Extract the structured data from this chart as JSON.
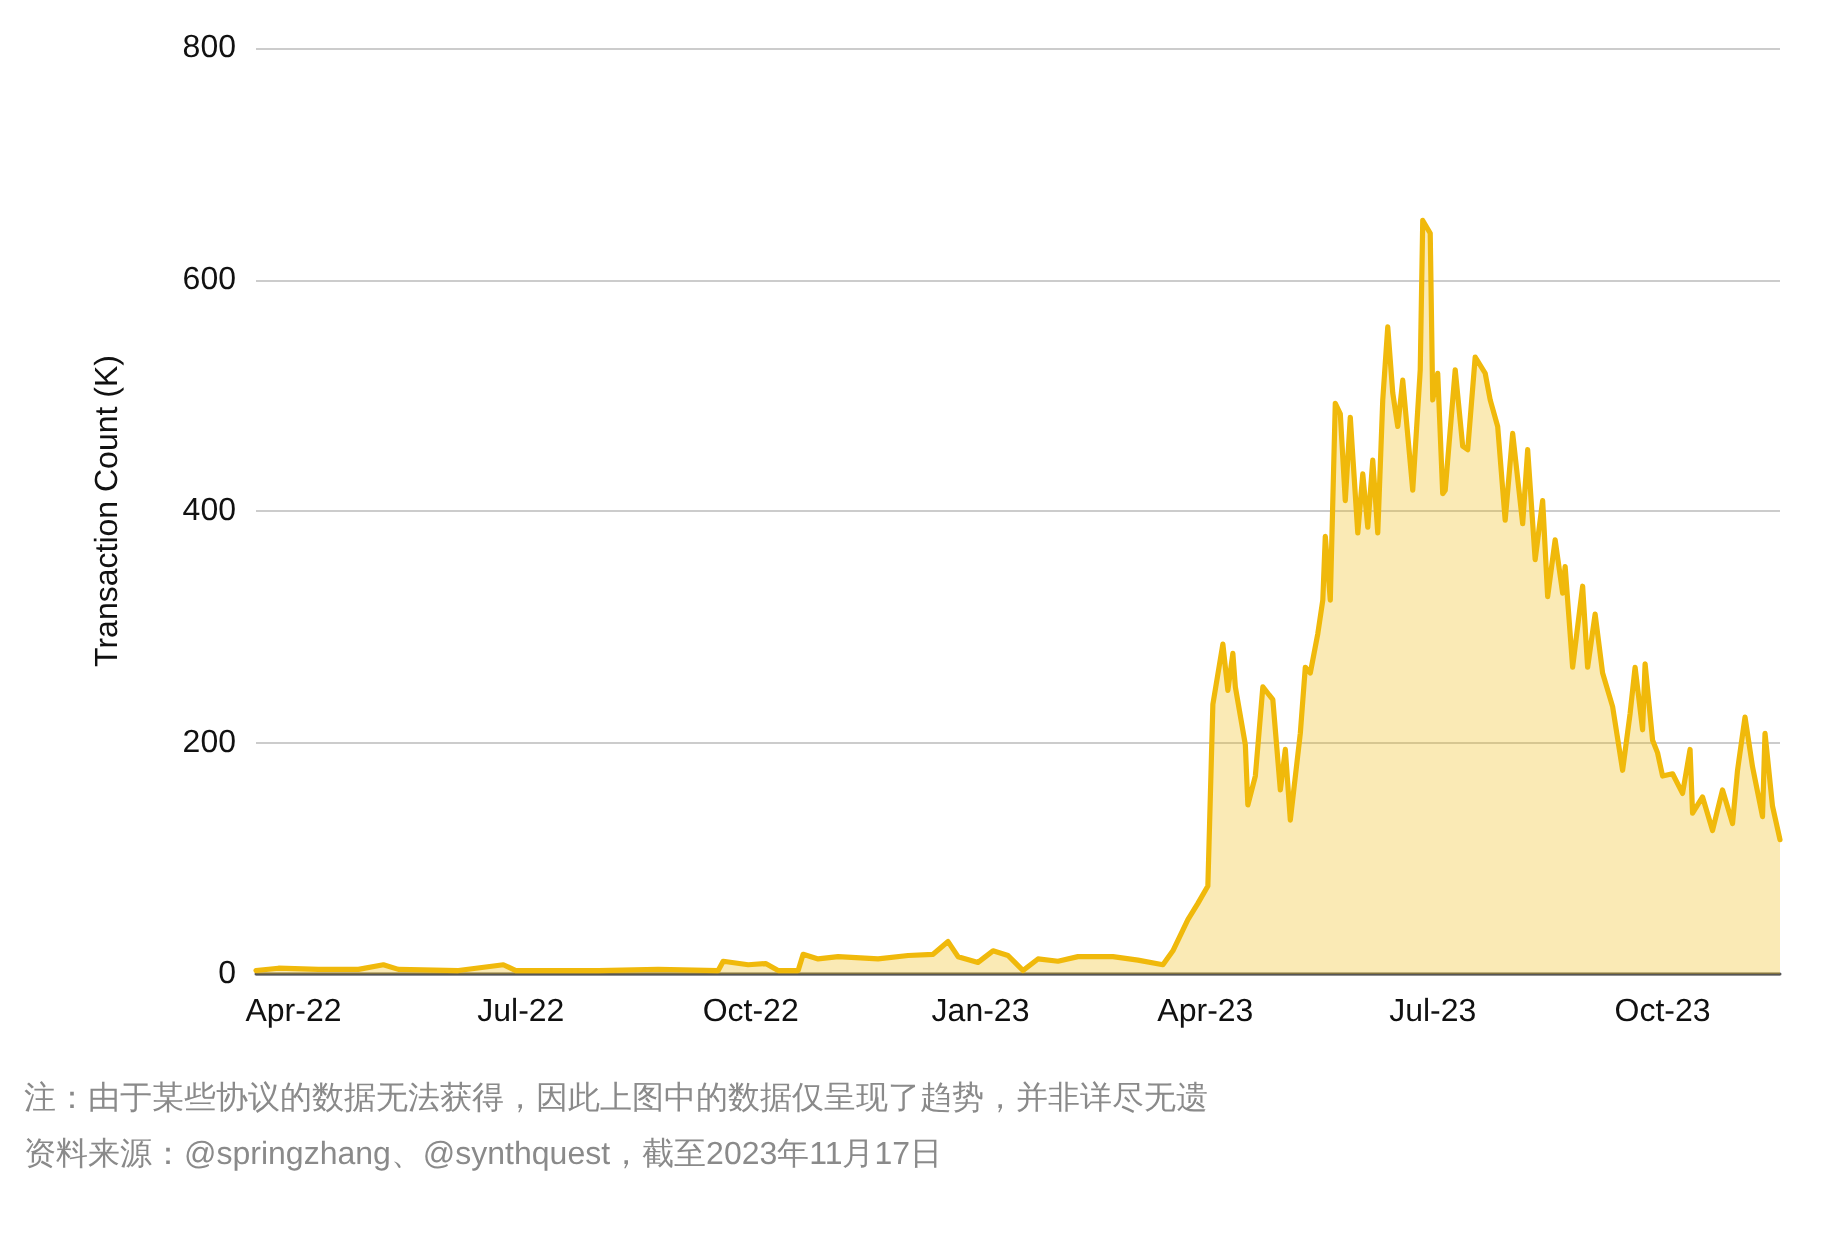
{
  "chart_data": {
    "type": "area",
    "ylabel": "Transaction Count (K)",
    "x": [
      "2022-03-17",
      "2022-03-26",
      "2022-04-11",
      "2022-04-27",
      "2022-05-07",
      "2022-05-13",
      "2022-06-06",
      "2022-06-24",
      "2022-06-29",
      "2022-08-01",
      "2022-08-25",
      "2022-09-18",
      "2022-09-20",
      "2022-09-30",
      "2022-10-07",
      "2022-10-12",
      "2022-10-20",
      "2022-10-22",
      "2022-10-28",
      "2022-11-05",
      "2022-11-21",
      "2022-12-03",
      "2022-12-13",
      "2022-12-19",
      "2022-12-23",
      "2022-12-31",
      "2023-01-06",
      "2023-01-12",
      "2023-01-18",
      "2023-01-24",
      "2023-02-01",
      "2023-02-09",
      "2023-02-23",
      "2023-03-05",
      "2023-03-15",
      "2023-03-19",
      "2023-03-25",
      "2023-03-29",
      "2023-04-02",
      "2023-04-04",
      "2023-04-08",
      "2023-04-10",
      "2023-04-12",
      "2023-04-13",
      "2023-04-17",
      "2023-04-18",
      "2023-04-21",
      "2023-04-24",
      "2023-04-28",
      "2023-05-01",
      "2023-05-03",
      "2023-05-05",
      "2023-05-09",
      "2023-05-11",
      "2023-05-13",
      "2023-05-16",
      "2023-05-18",
      "2023-05-19",
      "2023-05-21",
      "2023-05-23",
      "2023-05-25",
      "2023-05-27",
      "2023-05-29",
      "2023-06-01",
      "2023-06-03",
      "2023-06-05",
      "2023-06-07",
      "2023-06-09",
      "2023-06-11",
      "2023-06-13",
      "2023-06-15",
      "2023-06-17",
      "2023-06-19",
      "2023-06-23",
      "2023-06-26",
      "2023-06-27",
      "2023-06-30",
      "2023-07-01",
      "2023-07-03",
      "2023-07-05",
      "2023-07-06",
      "2023-07-10",
      "2023-07-13",
      "2023-07-15",
      "2023-07-18",
      "2023-07-22",
      "2023-07-24",
      "2023-07-27",
      "2023-07-30",
      "2023-08-02",
      "2023-08-06",
      "2023-08-08",
      "2023-08-11",
      "2023-08-14",
      "2023-08-16",
      "2023-08-19",
      "2023-08-22",
      "2023-08-23",
      "2023-08-26",
      "2023-08-30",
      "2023-09-01",
      "2023-09-04",
      "2023-09-07",
      "2023-09-11",
      "2023-09-15",
      "2023-09-18",
      "2023-09-20",
      "2023-09-23",
      "2023-09-24",
      "2023-09-27",
      "2023-09-29",
      "2023-10-01",
      "2023-10-05",
      "2023-10-09",
      "2023-10-12",
      "2023-10-13",
      "2023-10-17",
      "2023-10-21",
      "2023-10-25",
      "2023-10-29",
      "2023-10-31",
      "2023-11-03",
      "2023-11-06",
      "2023-11-10",
      "2023-11-11",
      "2023-11-14",
      "2023-11-17"
    ],
    "series": [
      {
        "color": "#f0b90b",
        "values": [
          3,
          5,
          4,
          4,
          8,
          4,
          3,
          8,
          3,
          3,
          4,
          3,
          11,
          8,
          9,
          3,
          3,
          17,
          13,
          15,
          13,
          16,
          17,
          28,
          15,
          10,
          20,
          16,
          3,
          13,
          11,
          15,
          15,
          12,
          8,
          20,
          47,
          61,
          76,
          233,
          285,
          245,
          277,
          248,
          198,
          146,
          171,
          248,
          237,
          159,
          194,
          133,
          208,
          265,
          260,
          294,
          323,
          378,
          323,
          493,
          484,
          409,
          481,
          381,
          432,
          386,
          444,
          381,
          496,
          559,
          502,
          473,
          513,
          418,
          522,
          651,
          640,
          496,
          519,
          415,
          418,
          522,
          456,
          453,
          533,
          519,
          496,
          473,
          392,
          467,
          389,
          453,
          358,
          409,
          326,
          375,
          329,
          352,
          265,
          335,
          265,
          311,
          260,
          231,
          176,
          225,
          265,
          211,
          268,
          202,
          191,
          171,
          173,
          156,
          194,
          139,
          153,
          124,
          159,
          130,
          176,
          222,
          179,
          136,
          208,
          145,
          116
        ]
      }
    ],
    "xlim": [
      "2022-03-17",
      "2023-11-17"
    ],
    "xticks": [
      {
        "value": "2022-04-01",
        "label": "Apr-22"
      },
      {
        "value": "2022-07-01",
        "label": "Jul-22"
      },
      {
        "value": "2022-10-01",
        "label": "Oct-22"
      },
      {
        "value": "2023-01-01",
        "label": "Jan-23"
      },
      {
        "value": "2023-04-01",
        "label": "Apr-23"
      },
      {
        "value": "2023-07-01",
        "label": "Jul-23"
      },
      {
        "value": "2023-10-01",
        "label": "Oct-23"
      }
    ],
    "ylim": [
      0,
      800
    ],
    "yticks": [
      0,
      200,
      400,
      600,
      800
    ],
    "grid": "y",
    "marker": "none",
    "line_style": "solid",
    "annotations": [
      "注：由于某些协议的数据无法获得，因此上图中的数据仅呈现了趋势，并非详尽无遗",
      "资料来源：@springzhang、@synthquest，截至2023年11月17日"
    ]
  }
}
